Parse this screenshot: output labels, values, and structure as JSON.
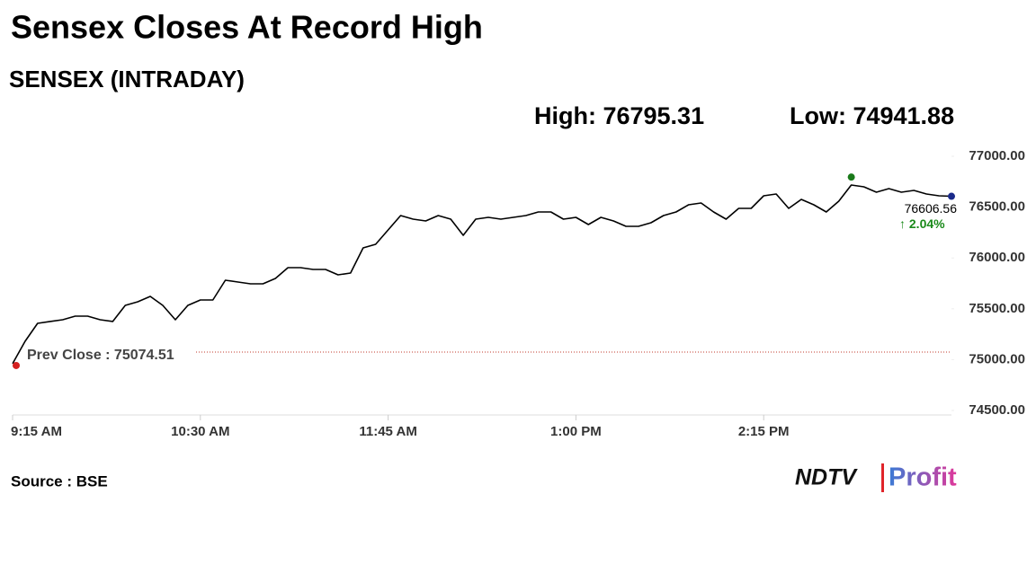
{
  "chart_data": {
    "type": "line",
    "title": "Sensex Closes At Record High",
    "subtitle": "SENSEX (INTRADAY)",
    "high": {
      "value": 76795.31,
      "label": "High: 76795.31"
    },
    "low": {
      "value": 74941.88,
      "label": "Low: 74941.88"
    },
    "prev_close": {
      "value": 75074.51,
      "label": "Prev Close : 75074.51"
    },
    "change_label": "↑ 2.04%",
    "source": "Source : BSE",
    "logo": {
      "brand": "NDTV",
      "product": "Profit"
    },
    "color": "#000000",
    "xlim": [
      555,
      930
    ],
    "xticks": [
      {
        "value": 555,
        "label": "9:15 AM"
      },
      {
        "value": 630,
        "label": "10:30 AM"
      },
      {
        "value": 705,
        "label": "11:45 AM"
      },
      {
        "value": 780,
        "label": "1:00 PM"
      },
      {
        "value": 855,
        "label": "2:15 PM"
      }
    ],
    "ylim": [
      74500,
      77000
    ],
    "yticks": [
      {
        "value": 74500,
        "label": "74500.00"
      },
      {
        "value": 75000,
        "label": "75000.00"
      },
      {
        "value": 75500,
        "label": "75500.00"
      },
      {
        "value": 76000,
        "label": "76000.00"
      },
      {
        "value": 76500,
        "label": "76500.00"
      },
      {
        "value": 77000,
        "label": "77000.00"
      }
    ],
    "x": [
      555,
      560,
      565,
      570,
      575,
      580,
      585,
      590,
      595,
      600,
      605,
      610,
      615,
      620,
      625,
      630,
      635,
      640,
      645,
      650,
      655,
      660,
      665,
      670,
      675,
      680,
      685,
      690,
      695,
      700,
      705,
      710,
      715,
      720,
      725,
      730,
      735,
      740,
      745,
      750,
      755,
      760,
      765,
      770,
      775,
      780,
      785,
      790,
      795,
      800,
      805,
      810,
      815,
      820,
      825,
      830,
      835,
      840,
      845,
      850,
      855,
      860,
      865,
      870,
      875,
      880,
      885,
      890,
      895,
      900,
      905,
      910,
      915,
      920,
      925,
      930
    ],
    "values": [
      74960,
      75180,
      75357,
      75375,
      75392,
      75428,
      75428,
      75392,
      75375,
      75534,
      75569,
      75622,
      75534,
      75392,
      75534,
      75587,
      75587,
      75781,
      75763,
      75746,
      75746,
      75799,
      75905,
      75905,
      75887,
      75887,
      75834,
      75852,
      76099,
      76134,
      76276,
      76417,
      76382,
      76364,
      76417,
      76382,
      76223,
      76382,
      76399,
      76382,
      76399,
      76417,
      76452,
      76452,
      76382,
      76399,
      76329,
      76399,
      76364,
      76311,
      76311,
      76346,
      76417,
      76452,
      76523,
      76541,
      76452,
      76382,
      76488,
      76488,
      76611,
      76629,
      76488,
      76576,
      76523,
      76452,
      76558,
      76717,
      76700,
      76647,
      76682,
      76647,
      76664,
      76629,
      76611,
      76606.56
    ]
  }
}
